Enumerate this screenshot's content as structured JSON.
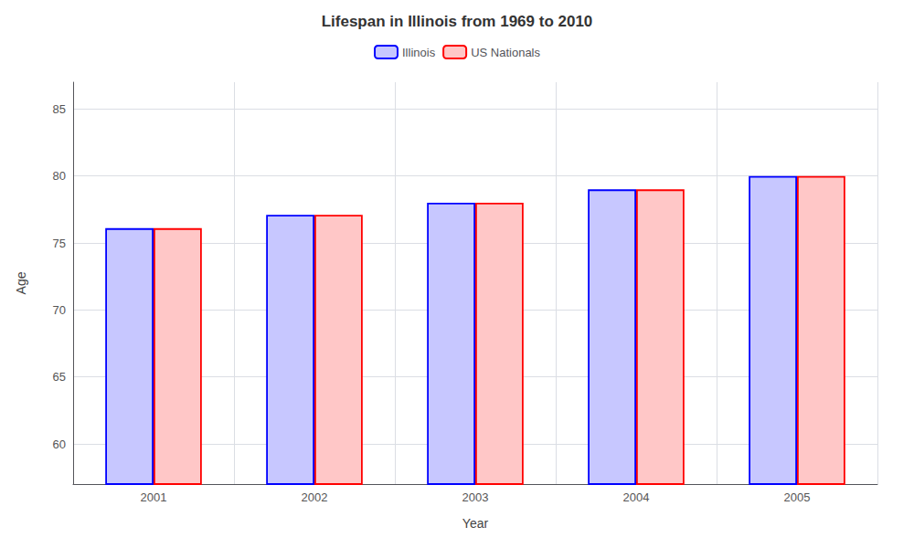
{
  "chart_data": {
    "type": "bar",
    "title": "Lifespan in Illinois from 1969 to 2010",
    "xlabel": "Year",
    "ylabel": "Age",
    "categories": [
      "2001",
      "2002",
      "2003",
      "2004",
      "2005"
    ],
    "series": [
      {
        "name": "Illinois",
        "color": "#0000ff",
        "values": [
          76.1,
          77.1,
          78.0,
          79.0,
          80.0
        ]
      },
      {
        "name": "US Nationals",
        "color": "#ff0000",
        "values": [
          76.1,
          77.1,
          78.0,
          79.0,
          80.0
        ]
      }
    ],
    "ylim": [
      57,
      87
    ],
    "yticks": [
      60,
      65,
      70,
      75,
      80,
      85
    ],
    "grid": true,
    "legend": "top"
  }
}
